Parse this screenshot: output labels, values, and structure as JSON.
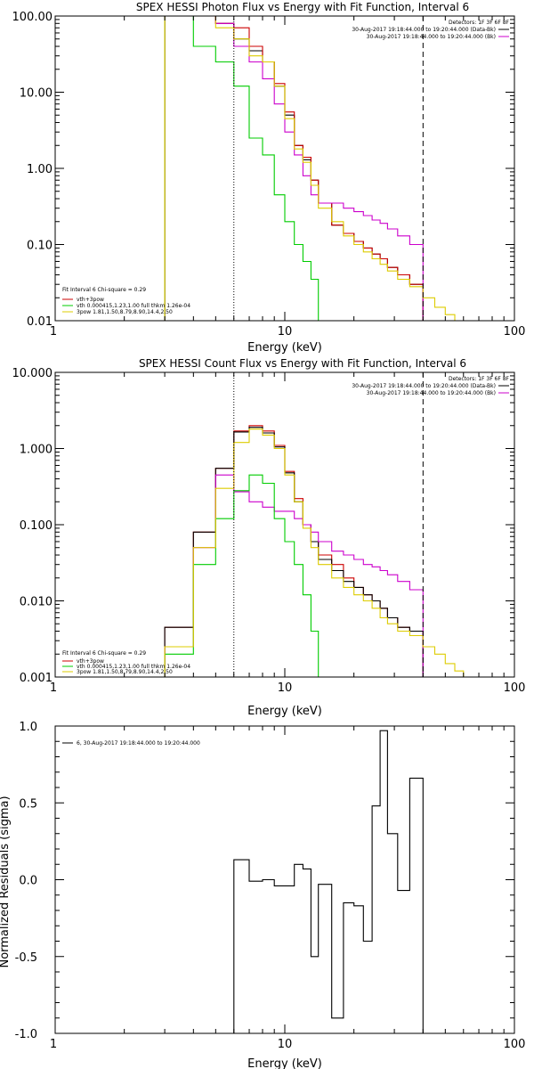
{
  "chart_data": [
    {
      "type": "line",
      "title": "SPEX HESSI Photon Flux vs Energy with Fit Function, Interval 6",
      "xlabel": "Energy (keV)",
      "ylabel": "",
      "xscale": "log",
      "yscale": "log",
      "xlim": [
        1,
        100
      ],
      "ylim": [
        0.01,
        100
      ],
      "x_ticks": [
        "1",
        "10",
        "100"
      ],
      "y_ticks": [
        "0.01",
        "0.10",
        "1.00",
        "10.00",
        "100.00"
      ],
      "legend_left": {
        "placement": "bottom-left",
        "lines": [
          "Fit Interval 6    Chi-square = 0.29",
          "vth+3pow",
          "vth 0.000415,1.23,1.00   full thkm 1.26e-04",
          "3pow 1.81,1.50,8.79,8.90,14.4,2.50"
        ]
      },
      "legend_right": {
        "placement": "top-right",
        "lines": [
          "Detectors: 1F 3F 6F 8F",
          "30-Aug-2017 19:18:44.000 to 19:20:44.000 (Data-Bk)",
          "30-Aug-2017 19:18:44.000 to 19:20:44.000 (Bk)"
        ]
      },
      "vlines_keV": [
        6.0,
        40.0
      ],
      "edges": [
        3,
        4,
        5,
        6,
        7,
        8,
        9,
        10,
        11,
        12,
        13,
        14,
        16,
        18,
        20,
        22,
        24,
        26,
        28,
        31,
        35,
        40,
        45,
        50,
        55
      ],
      "series": [
        {
          "color": "#000000",
          "values": [
            100,
            100,
            80,
            50,
            35,
            25,
            12,
            5,
            2,
            1.3,
            0.7,
            0.35,
            0.18,
            0.14,
            0.11,
            0.09,
            0.075,
            0.065,
            0.05,
            0.04,
            0.03
          ]
        },
        {
          "color": "#cc0000",
          "values": [
            100,
            100,
            80,
            70,
            40,
            25,
            13,
            5.5,
            2,
            1.4,
            0.7,
            0.35,
            0.18,
            0.14,
            0.11,
            0.09,
            0.075,
            0.065,
            0.05,
            0.04,
            0.03
          ]
        },
        {
          "color": "#cc00cc",
          "values": [
            100,
            100,
            80,
            40,
            25,
            15,
            7,
            3,
            1.5,
            0.8,
            0.45,
            0.35,
            0.35,
            0.3,
            0.27,
            0.24,
            0.21,
            0.19,
            0.16,
            0.13,
            0.1
          ]
        },
        {
          "color": "#00cc00",
          "values": [
            100,
            40,
            25,
            12,
            2.5,
            1.5,
            0.45,
            0.2,
            0.1,
            0.06,
            0.035,
            0.01
          ]
        },
        {
          "color": "#ddcc00",
          "values": [
            100,
            100,
            70,
            50,
            30,
            25,
            12,
            4.5,
            1.8,
            1.2,
            0.6,
            0.3,
            0.2,
            0.13,
            0.1,
            0.08,
            0.065,
            0.055,
            0.045,
            0.035,
            0.028,
            0.02,
            0.015,
            0.012,
            0.01
          ]
        }
      ]
    },
    {
      "type": "line",
      "title": "SPEX HESSI Count Flux vs Energy with Fit Function, Interval 6",
      "xlabel": "Energy (keV)",
      "ylabel": "",
      "xscale": "log",
      "yscale": "log",
      "xlim": [
        1,
        100
      ],
      "ylim": [
        0.001,
        10
      ],
      "x_ticks": [
        "1",
        "10",
        "100"
      ],
      "y_ticks": [
        "0.001",
        "0.010",
        "0.100",
        "1.000",
        "10.000"
      ],
      "legend_left": {
        "placement": "bottom-left",
        "lines": [
          "Fit Interval 6    Chi-square = 0.29",
          "vth+3pow",
          "vth 0.000415,1.23,1.00   full thkm 1.26e-04",
          "3pow 1.81,1.50,8.79,8.90,14.4,2.50"
        ]
      },
      "legend_right": {
        "placement": "top-right",
        "lines": [
          "Detectors: 1F 3F 6F 8F",
          "30-Aug-2017 19:18:44.000 to 19:20:44.000 (Data-Bk)",
          "30-Aug-2017 19:18:44.000 to 19:20:44.000 (Bk)"
        ]
      },
      "vlines_keV": [
        6.0,
        40.0
      ],
      "edges": [
        3,
        4,
        5,
        6,
        7,
        8,
        9,
        10,
        11,
        12,
        13,
        14,
        16,
        18,
        20,
        22,
        24,
        26,
        28,
        31,
        35,
        40,
        45,
        50,
        55,
        60,
        65,
        70,
        75
      ],
      "series": [
        {
          "color": "#cc0000",
          "values": [
            0.0045,
            0.08,
            0.55,
            1.7,
            2.0,
            1.7,
            1.1,
            0.5,
            0.22,
            0.1,
            0.06,
            0.04,
            0.03,
            0.02,
            0.015,
            0.012,
            0.01,
            0.008,
            0.006,
            0.0045,
            0.004
          ]
        },
        {
          "color": "#000000",
          "values": [
            0.0045,
            0.08,
            0.55,
            1.65,
            1.9,
            1.6,
            1.05,
            0.48,
            0.2,
            0.1,
            0.06,
            0.035,
            0.025,
            0.018,
            0.015,
            0.012,
            0.01,
            0.008,
            0.006,
            0.0045,
            0.004
          ]
        },
        {
          "color": "#cc00cc",
          "values": [
            0.0025,
            0.05,
            0.45,
            0.27,
            0.2,
            0.17,
            0.15,
            0.15,
            0.12,
            0.1,
            0.08,
            0.06,
            0.045,
            0.04,
            0.035,
            0.03,
            0.028,
            0.025,
            0.022,
            0.018,
            0.014
          ]
        },
        {
          "color": "#00cc00",
          "values": [
            0.002,
            0.03,
            0.12,
            0.28,
            0.45,
            0.35,
            0.12,
            0.06,
            0.03,
            0.012,
            0.004,
            0.001
          ]
        },
        {
          "color": "#ddcc00",
          "values": [
            0.0025,
            0.05,
            0.3,
            1.2,
            1.8,
            1.5,
            1.0,
            0.45,
            0.2,
            0.09,
            0.05,
            0.03,
            0.02,
            0.015,
            0.012,
            0.01,
            0.008,
            0.006,
            0.005,
            0.004,
            0.0035,
            0.0025,
            0.002,
            0.0015,
            0.0012,
            0.001
          ]
        }
      ]
    },
    {
      "type": "line",
      "title": "",
      "xlabel": "Energy (keV)",
      "ylabel": "Normalized Residuals (sigma)",
      "xscale": "log",
      "yscale": "linear",
      "xlim": [
        1,
        100
      ],
      "ylim": [
        -1.0,
        1.0
      ],
      "x_ticks": [
        "1",
        "10",
        "100"
      ],
      "y_ticks": [
        "-1.0",
        "-0.5",
        "0.0",
        "0.5",
        "1.0"
      ],
      "legend_left": {
        "placement": "top-left",
        "lines": [
          "6, 30-Aug-2017 19:18:44.000 to 19:20:44.000"
        ]
      },
      "edges": [
        6,
        7,
        8,
        9,
        10,
        11,
        12,
        13,
        14,
        16,
        18,
        20,
        22,
        24,
        26,
        28,
        31,
        35,
        40
      ],
      "series": [
        {
          "color": "#000000",
          "values": [
            0.13,
            -0.01,
            0.0,
            -0.04,
            -0.04,
            0.1,
            0.07,
            -0.5,
            -0.03,
            -0.9,
            -0.15,
            -0.17,
            -0.4,
            0.48,
            0.97,
            0.3,
            -0.07,
            0.66
          ]
        }
      ]
    }
  ]
}
